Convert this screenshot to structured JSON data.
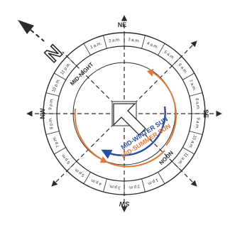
{
  "north_marker": "N",
  "directions": {
    "ne": "NE",
    "se": "SE",
    "sw": "SW",
    "nw": "NW"
  },
  "ring_labels": {
    "midnight": "MID-NIGHT",
    "noon": "NOON"
  },
  "sun_paths": {
    "winter": {
      "label": "MID-WINTER SUN",
      "color": "#2a4fa0"
    },
    "summer": {
      "label": "MID-SUMMER SUN",
      "color": "#e07a3c"
    }
  },
  "hour_labels": [
    "1 a.m.",
    "2 a.m.",
    "3 a.m.",
    "4 a.m.",
    "5 a.m.",
    "6 a.m.",
    "7 a.m.",
    "8 a.m.",
    "9 a.m.",
    "10 a.m.",
    "11 a.m.",
    "1 p.m.",
    "2 p.m.",
    "3 p.m.",
    "4 p.m.",
    "5 p.m.",
    "6 p.m.",
    "7 p.m.",
    "8 p.m.",
    "9 p.m.",
    "10 p.m.",
    "11 p.m."
  ],
  "colors": {
    "ink": "#2b2b2b",
    "winter": "#2a4fa0",
    "summer": "#e07a3c"
  }
}
